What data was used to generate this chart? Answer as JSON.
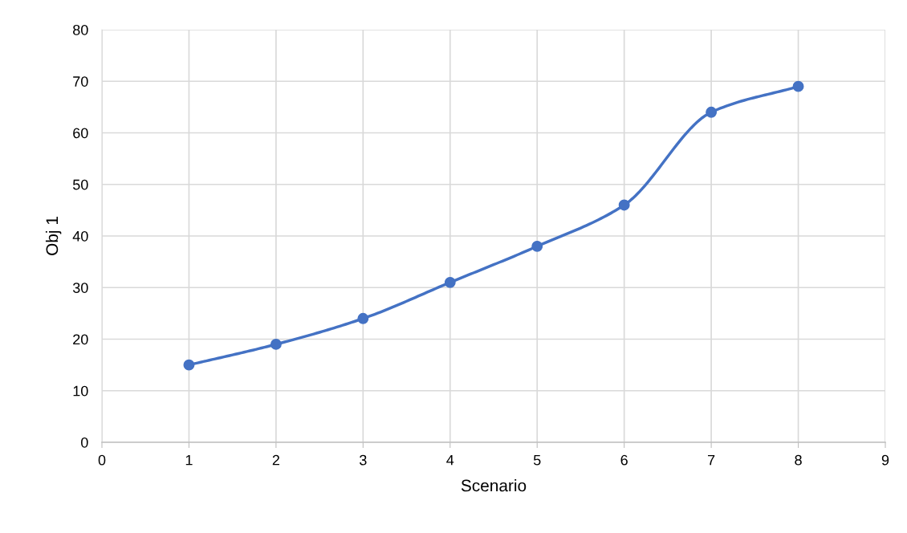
{
  "chart_data": {
    "type": "line",
    "xlabel": "Scenario",
    "ylabel": "Obj 1",
    "x": [
      1,
      2,
      3,
      4,
      5,
      6,
      7,
      8
    ],
    "series": [
      {
        "color": "#4472c4",
        "values": [
          15,
          19,
          24,
          31,
          38,
          46,
          64,
          69
        ]
      }
    ],
    "xlim": [
      0,
      9
    ],
    "xticks": [
      0,
      1,
      2,
      3,
      4,
      5,
      6,
      7,
      8,
      9
    ],
    "ylim": [
      0,
      80
    ],
    "yticks": [
      0,
      10,
      20,
      30,
      40,
      50,
      60,
      70,
      80
    ],
    "grid": true,
    "marker": "circle",
    "line_style": "solid"
  }
}
